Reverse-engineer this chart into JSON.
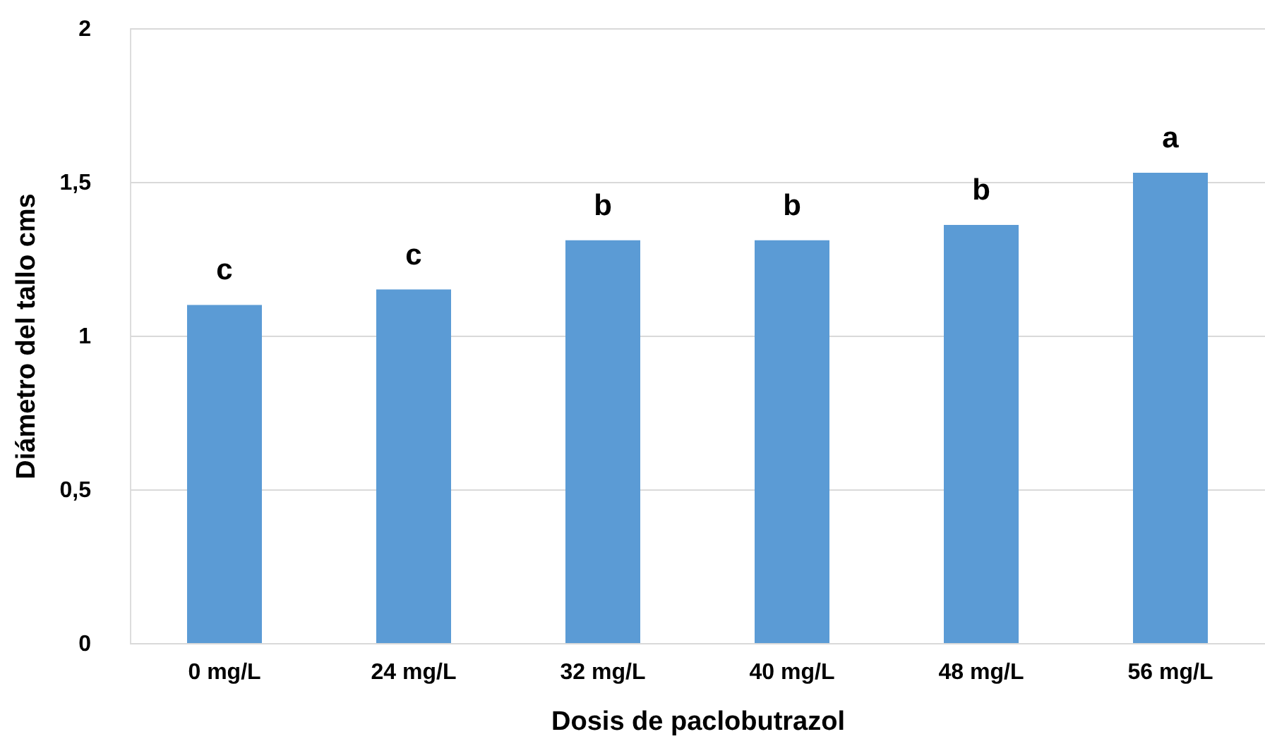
{
  "chart_data": {
    "type": "bar",
    "xlabel": "Dosis de paclobutrazol",
    "ylabel": "Diámetro del tallo cms",
    "categories": [
      "0 mg/L",
      "24 mg/L",
      "32 mg/L",
      "40 mg/L",
      "48 mg/L",
      "56 mg/L"
    ],
    "values": [
      1.1,
      1.15,
      1.31,
      1.31,
      1.36,
      1.53
    ],
    "color": "#5b9bd5",
    "ylim": [
      0,
      2
    ],
    "yticks": [
      0,
      {
        "value": 0.5,
        "label": "0,5"
      },
      1,
      {
        "value": 1.5,
        "label": "1,5"
      },
      2
    ],
    "grid": "y",
    "annotations": [
      {
        "text": "c",
        "x": "0 mg/L",
        "y": 1.1
      },
      {
        "text": "c",
        "x": "24 mg/L",
        "y": 1.15
      },
      {
        "text": "b",
        "x": "32 mg/L",
        "y": 1.31
      },
      {
        "text": "b",
        "x": "40 mg/L",
        "y": 1.31
      },
      {
        "text": "b",
        "x": "48 mg/L",
        "y": 1.36
      },
      {
        "text": "a",
        "x": "56 mg/L",
        "y": 1.53
      }
    ]
  }
}
